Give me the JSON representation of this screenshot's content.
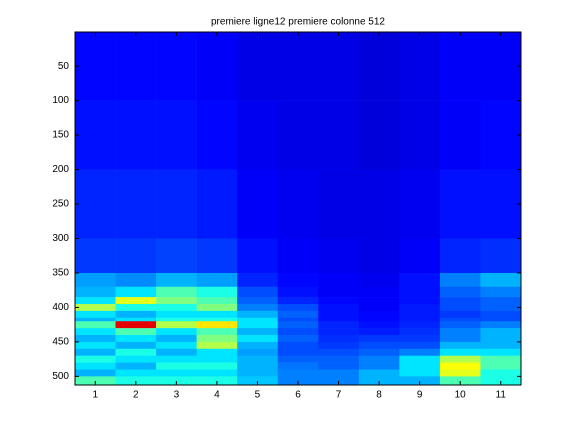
{
  "chart_data": {
    "type": "heatmap",
    "title": "premiere ligne12 premiere colonne 512",
    "colormap": "jet",
    "x": [
      1,
      2,
      3,
      4,
      5,
      6,
      7,
      8,
      9,
      10,
      11
    ],
    "row_edges": [
      0.5,
      100,
      200,
      300,
      350,
      370,
      385,
      395,
      405,
      415,
      420,
      430,
      440,
      450,
      460,
      470,
      480,
      490,
      500,
      512.5
    ],
    "values": [
      [
        0.13,
        0.13,
        0.13,
        0.12,
        0.1,
        0.1,
        0.1,
        0.09,
        0.1,
        0.12,
        0.12
      ],
      [
        0.14,
        0.14,
        0.14,
        0.13,
        0.11,
        0.1,
        0.1,
        0.09,
        0.1,
        0.12,
        0.13
      ],
      [
        0.16,
        0.16,
        0.16,
        0.15,
        0.12,
        0.11,
        0.1,
        0.1,
        0.11,
        0.14,
        0.14
      ],
      [
        0.18,
        0.18,
        0.19,
        0.18,
        0.14,
        0.12,
        0.11,
        0.1,
        0.12,
        0.16,
        0.17
      ],
      [
        0.28,
        0.26,
        0.3,
        0.28,
        0.16,
        0.13,
        0.12,
        0.11,
        0.14,
        0.25,
        0.3
      ],
      [
        0.3,
        0.35,
        0.45,
        0.4,
        0.2,
        0.14,
        0.12,
        0.12,
        0.14,
        0.22,
        0.25
      ],
      [
        0.35,
        0.6,
        0.5,
        0.45,
        0.22,
        0.16,
        0.13,
        0.12,
        0.14,
        0.2,
        0.22
      ],
      [
        0.55,
        0.4,
        0.4,
        0.5,
        0.25,
        0.2,
        0.14,
        0.12,
        0.15,
        0.2,
        0.22
      ],
      [
        0.35,
        0.3,
        0.35,
        0.35,
        0.3,
        0.22,
        0.14,
        0.13,
        0.15,
        0.18,
        0.2
      ],
      [
        0.3,
        0.35,
        0.4,
        0.4,
        0.35,
        0.2,
        0.14,
        0.13,
        0.15,
        0.2,
        0.2
      ],
      [
        0.45,
        0.9,
        0.55,
        0.65,
        0.35,
        0.22,
        0.16,
        0.14,
        0.16,
        0.22,
        0.25
      ],
      [
        0.35,
        0.45,
        0.35,
        0.45,
        0.3,
        0.2,
        0.16,
        0.15,
        0.17,
        0.25,
        0.3
      ],
      [
        0.3,
        0.35,
        0.3,
        0.5,
        0.35,
        0.22,
        0.17,
        0.18,
        0.18,
        0.25,
        0.3
      ],
      [
        0.35,
        0.3,
        0.35,
        0.55,
        0.3,
        0.2,
        0.18,
        0.2,
        0.2,
        0.3,
        0.3
      ],
      [
        0.3,
        0.4,
        0.3,
        0.35,
        0.28,
        0.2,
        0.2,
        0.22,
        0.25,
        0.35,
        0.35
      ],
      [
        0.4,
        0.35,
        0.35,
        0.35,
        0.3,
        0.22,
        0.22,
        0.25,
        0.35,
        0.55,
        0.45
      ],
      [
        0.35,
        0.3,
        0.4,
        0.4,
        0.3,
        0.24,
        0.22,
        0.25,
        0.35,
        0.62,
        0.45
      ],
      [
        0.3,
        0.35,
        0.35,
        0.35,
        0.3,
        0.25,
        0.25,
        0.3,
        0.35,
        0.6,
        0.4
      ],
      [
        0.45,
        0.4,
        0.4,
        0.4,
        0.32,
        0.25,
        0.25,
        0.3,
        0.3,
        0.45,
        0.4
      ]
    ],
    "xlim": [
      0.5,
      11.5
    ],
    "xticks": [
      1,
      2,
      3,
      4,
      5,
      6,
      7,
      8,
      9,
      10,
      11
    ],
    "ylim": [
      0.5,
      512.5
    ],
    "y_reversed": true,
    "yticks": [
      50,
      100,
      150,
      200,
      250,
      300,
      350,
      400,
      450,
      500
    ]
  }
}
